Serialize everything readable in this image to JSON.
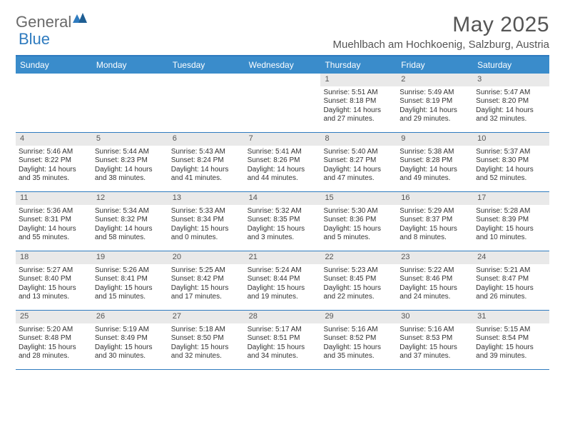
{
  "logo": {
    "word1": "General",
    "word2": "Blue"
  },
  "title": "May 2025",
  "location": "Muehlbach am Hochkoenig, Salzburg, Austria",
  "colors": {
    "header_bg": "#3a8ccb",
    "border": "#2f7bbf",
    "daynum_bg": "#e9e9e9",
    "text": "#333333",
    "muted": "#555555"
  },
  "dow": [
    "Sunday",
    "Monday",
    "Tuesday",
    "Wednesday",
    "Thursday",
    "Friday",
    "Saturday"
  ],
  "weeks": [
    [
      {
        "n": "",
        "sr": "",
        "ss": "",
        "dl": ""
      },
      {
        "n": "",
        "sr": "",
        "ss": "",
        "dl": ""
      },
      {
        "n": "",
        "sr": "",
        "ss": "",
        "dl": ""
      },
      {
        "n": "",
        "sr": "",
        "ss": "",
        "dl": ""
      },
      {
        "n": "1",
        "sr": "Sunrise: 5:51 AM",
        "ss": "Sunset: 8:18 PM",
        "dl": "Daylight: 14 hours and 27 minutes."
      },
      {
        "n": "2",
        "sr": "Sunrise: 5:49 AM",
        "ss": "Sunset: 8:19 PM",
        "dl": "Daylight: 14 hours and 29 minutes."
      },
      {
        "n": "3",
        "sr": "Sunrise: 5:47 AM",
        "ss": "Sunset: 8:20 PM",
        "dl": "Daylight: 14 hours and 32 minutes."
      }
    ],
    [
      {
        "n": "4",
        "sr": "Sunrise: 5:46 AM",
        "ss": "Sunset: 8:22 PM",
        "dl": "Daylight: 14 hours and 35 minutes."
      },
      {
        "n": "5",
        "sr": "Sunrise: 5:44 AM",
        "ss": "Sunset: 8:23 PM",
        "dl": "Daylight: 14 hours and 38 minutes."
      },
      {
        "n": "6",
        "sr": "Sunrise: 5:43 AM",
        "ss": "Sunset: 8:24 PM",
        "dl": "Daylight: 14 hours and 41 minutes."
      },
      {
        "n": "7",
        "sr": "Sunrise: 5:41 AM",
        "ss": "Sunset: 8:26 PM",
        "dl": "Daylight: 14 hours and 44 minutes."
      },
      {
        "n": "8",
        "sr": "Sunrise: 5:40 AM",
        "ss": "Sunset: 8:27 PM",
        "dl": "Daylight: 14 hours and 47 minutes."
      },
      {
        "n": "9",
        "sr": "Sunrise: 5:38 AM",
        "ss": "Sunset: 8:28 PM",
        "dl": "Daylight: 14 hours and 49 minutes."
      },
      {
        "n": "10",
        "sr": "Sunrise: 5:37 AM",
        "ss": "Sunset: 8:30 PM",
        "dl": "Daylight: 14 hours and 52 minutes."
      }
    ],
    [
      {
        "n": "11",
        "sr": "Sunrise: 5:36 AM",
        "ss": "Sunset: 8:31 PM",
        "dl": "Daylight: 14 hours and 55 minutes."
      },
      {
        "n": "12",
        "sr": "Sunrise: 5:34 AM",
        "ss": "Sunset: 8:32 PM",
        "dl": "Daylight: 14 hours and 58 minutes."
      },
      {
        "n": "13",
        "sr": "Sunrise: 5:33 AM",
        "ss": "Sunset: 8:34 PM",
        "dl": "Daylight: 15 hours and 0 minutes."
      },
      {
        "n": "14",
        "sr": "Sunrise: 5:32 AM",
        "ss": "Sunset: 8:35 PM",
        "dl": "Daylight: 15 hours and 3 minutes."
      },
      {
        "n": "15",
        "sr": "Sunrise: 5:30 AM",
        "ss": "Sunset: 8:36 PM",
        "dl": "Daylight: 15 hours and 5 minutes."
      },
      {
        "n": "16",
        "sr": "Sunrise: 5:29 AM",
        "ss": "Sunset: 8:37 PM",
        "dl": "Daylight: 15 hours and 8 minutes."
      },
      {
        "n": "17",
        "sr": "Sunrise: 5:28 AM",
        "ss": "Sunset: 8:39 PM",
        "dl": "Daylight: 15 hours and 10 minutes."
      }
    ],
    [
      {
        "n": "18",
        "sr": "Sunrise: 5:27 AM",
        "ss": "Sunset: 8:40 PM",
        "dl": "Daylight: 15 hours and 13 minutes."
      },
      {
        "n": "19",
        "sr": "Sunrise: 5:26 AM",
        "ss": "Sunset: 8:41 PM",
        "dl": "Daylight: 15 hours and 15 minutes."
      },
      {
        "n": "20",
        "sr": "Sunrise: 5:25 AM",
        "ss": "Sunset: 8:42 PM",
        "dl": "Daylight: 15 hours and 17 minutes."
      },
      {
        "n": "21",
        "sr": "Sunrise: 5:24 AM",
        "ss": "Sunset: 8:44 PM",
        "dl": "Daylight: 15 hours and 19 minutes."
      },
      {
        "n": "22",
        "sr": "Sunrise: 5:23 AM",
        "ss": "Sunset: 8:45 PM",
        "dl": "Daylight: 15 hours and 22 minutes."
      },
      {
        "n": "23",
        "sr": "Sunrise: 5:22 AM",
        "ss": "Sunset: 8:46 PM",
        "dl": "Daylight: 15 hours and 24 minutes."
      },
      {
        "n": "24",
        "sr": "Sunrise: 5:21 AM",
        "ss": "Sunset: 8:47 PM",
        "dl": "Daylight: 15 hours and 26 minutes."
      }
    ],
    [
      {
        "n": "25",
        "sr": "Sunrise: 5:20 AM",
        "ss": "Sunset: 8:48 PM",
        "dl": "Daylight: 15 hours and 28 minutes."
      },
      {
        "n": "26",
        "sr": "Sunrise: 5:19 AM",
        "ss": "Sunset: 8:49 PM",
        "dl": "Daylight: 15 hours and 30 minutes."
      },
      {
        "n": "27",
        "sr": "Sunrise: 5:18 AM",
        "ss": "Sunset: 8:50 PM",
        "dl": "Daylight: 15 hours and 32 minutes."
      },
      {
        "n": "28",
        "sr": "Sunrise: 5:17 AM",
        "ss": "Sunset: 8:51 PM",
        "dl": "Daylight: 15 hours and 34 minutes."
      },
      {
        "n": "29",
        "sr": "Sunrise: 5:16 AM",
        "ss": "Sunset: 8:52 PM",
        "dl": "Daylight: 15 hours and 35 minutes."
      },
      {
        "n": "30",
        "sr": "Sunrise: 5:16 AM",
        "ss": "Sunset: 8:53 PM",
        "dl": "Daylight: 15 hours and 37 minutes."
      },
      {
        "n": "31",
        "sr": "Sunrise: 5:15 AM",
        "ss": "Sunset: 8:54 PM",
        "dl": "Daylight: 15 hours and 39 minutes."
      }
    ]
  ]
}
